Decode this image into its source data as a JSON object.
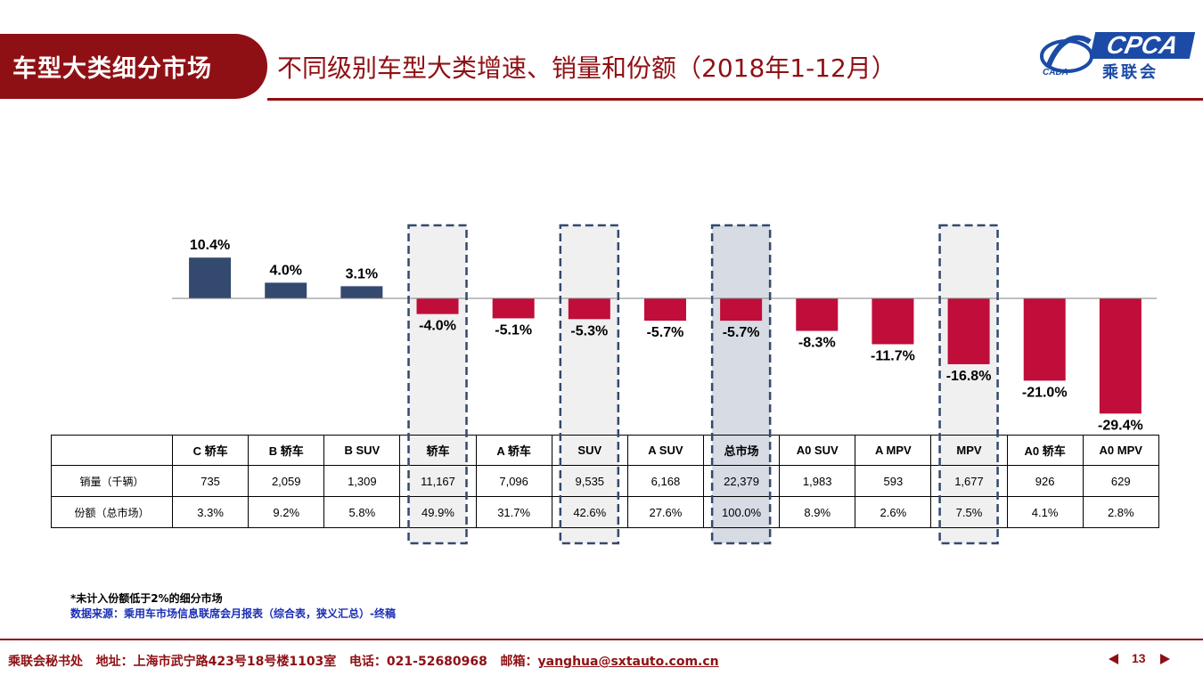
{
  "header": {
    "section_tab": "车型大类细分市场",
    "title": "不同级别车型大类增速、销量和份额（2018年1-12月）"
  },
  "logo": {
    "brand": "CPCA",
    "cn_name": "乘联会",
    "sub_brand": "CADA",
    "brand_color": "#1b4ba6"
  },
  "colors": {
    "positive_bar": "#34496e",
    "negative_bar": "#c00d3a",
    "accent": "#8f1014",
    "highlight_fill": "#f0f0f0",
    "total_highlight_fill": "#d6dbe4",
    "dashed_border": "#34496e"
  },
  "chart_data": {
    "type": "bar",
    "categories": [
      "C 轿车",
      "B 轿车",
      "B SUV",
      "轿车",
      "A 轿车",
      "SUV",
      "A SUV",
      "总市场",
      "A0 SUV",
      "A MPV",
      "MPV",
      "A0 轿车",
      "A0 MPV"
    ],
    "values": [
      10.4,
      4.0,
      3.1,
      -4.0,
      -5.1,
      -5.3,
      -5.7,
      -5.7,
      -8.3,
      -11.7,
      -16.8,
      -21.0,
      -29.4
    ],
    "value_labels": [
      "10.4%",
      "4.0%",
      "3.1%",
      "-4.0%",
      "-5.1%",
      "-5.3%",
      "-5.7%",
      "-5.7%",
      "-8.3%",
      "-11.7%",
      "-16.8%",
      "-21.0%",
      "-29.4%"
    ],
    "unit": "%",
    "highlighted_categories": [
      "轿车",
      "SUV",
      "总市场",
      "MPV"
    ],
    "ylim": [
      -29.4,
      10.4
    ],
    "grid": false,
    "legend": "none"
  },
  "table": {
    "row_headers": [
      "销量（千辆）",
      "份额（总市场）"
    ],
    "sales": [
      "735",
      "2,059",
      "1,309",
      "11,167",
      "7,096",
      "9,535",
      "6,168",
      "22,379",
      "1,983",
      "593",
      "1,677",
      "926",
      "629"
    ],
    "share": [
      "3.3%",
      "9.2%",
      "5.8%",
      "49.9%",
      "31.7%",
      "42.6%",
      "27.6%",
      "100.0%",
      "8.9%",
      "2.6%",
      "7.5%",
      "4.1%",
      "2.8%"
    ]
  },
  "notes": {
    "note1": "*未计入份额低于2%的细分市场",
    "note2": "数据来源：乘用车市场信息联席会月报表（综合表，狭义汇总）-终稿"
  },
  "footer": {
    "org": "乘联会秘书处",
    "address": "地址：上海市武宁路423号18号楼1103室",
    "phone": "电话：021-52680968",
    "email_label": "邮箱：",
    "email": "yanghua@sxtauto.com.cn",
    "page": "13"
  }
}
